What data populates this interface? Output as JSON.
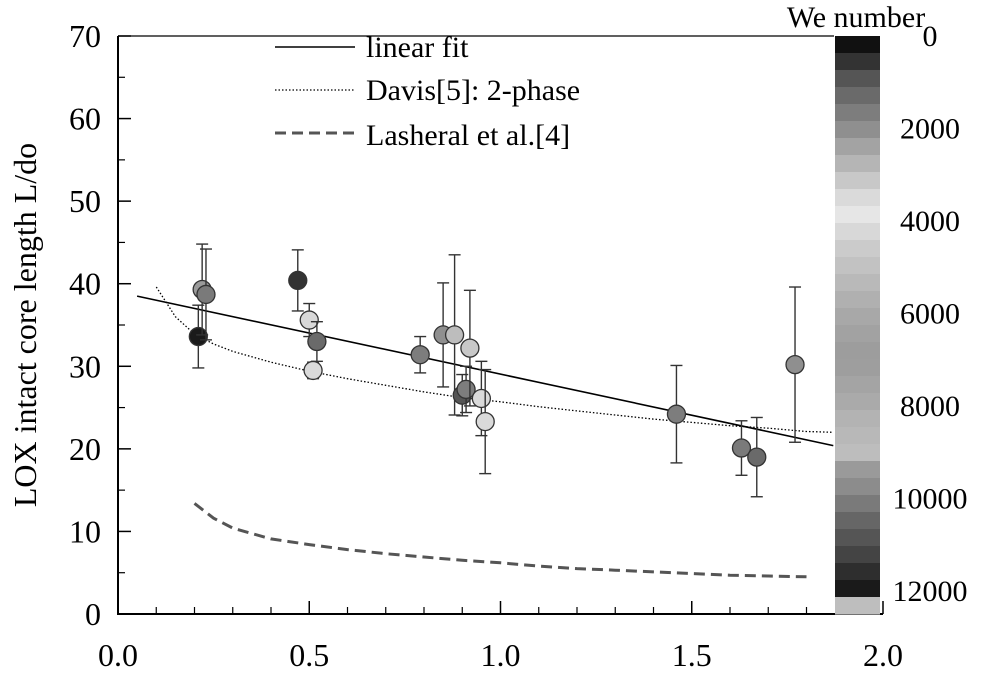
{
  "chart_data": {
    "type": "scatter",
    "title": "",
    "xlabel": "",
    "ylabel": "LOX intact core length L/do",
    "xlim": [
      0.0,
      2.0
    ],
    "ylim": [
      0,
      70
    ],
    "x_ticks": [
      "0.0",
      "0.5",
      "1.0",
      "1.5",
      "2.0"
    ],
    "y_ticks": [
      "0",
      "10",
      "20",
      "30",
      "40",
      "50",
      "60",
      "70"
    ],
    "grid": false,
    "legend_position": "top-center",
    "legend": [
      {
        "label": "linear fit",
        "style": "solid"
      },
      {
        "label": "Davis[5]: 2-phase",
        "style": "dotted"
      },
      {
        "label": "Lasheral et al.[4]",
        "style": "dashed"
      }
    ],
    "colorbar": {
      "title": "We number",
      "min": 0,
      "max": 12500,
      "tick_labels": [
        "0",
        "2000",
        "4000",
        "6000",
        "8000",
        "10000",
        "12000"
      ],
      "colors": [
        "#111111",
        "#333333",
        "#555555",
        "#6a6a6a",
        "#7d7d7d",
        "#8f8f8f",
        "#a3a3a3",
        "#b5b5b5",
        "#c8c8c8",
        "#dadada",
        "#e6e6e6",
        "#d8d8d8",
        "#cbcbcb",
        "#c2c2c2",
        "#b9b9b9",
        "#b0b0b0",
        "#a8a8a8",
        "#a2a2a2",
        "#9d9d9d",
        "#9e9e9e",
        "#a4a4a4",
        "#aaaaaa",
        "#b3b3b3",
        "#b8b8b8",
        "#bdbdbd",
        "#9a9a9a",
        "#8c8c8c",
        "#7a7a7a",
        "#666666",
        "#555555",
        "#444444",
        "#2e2e2e",
        "#1a1a1a",
        "#bebebe"
      ]
    },
    "series": [
      {
        "name": "data",
        "points": [
          {
            "x": 0.21,
            "y": 33.6,
            "err": 3.8,
            "we": 11900
          },
          {
            "x": 0.22,
            "y": 39.3,
            "err": 5.5,
            "we": 9500
          },
          {
            "x": 0.23,
            "y": 38.7,
            "err": 5.5,
            "we": 10000
          },
          {
            "x": 0.47,
            "y": 40.4,
            "err": 3.7,
            "we": 500
          },
          {
            "x": 0.5,
            "y": 35.6,
            "err": 2.0,
            "we": 4200
          },
          {
            "x": 0.51,
            "y": 29.5,
            "err": 1.0,
            "we": 3500
          },
          {
            "x": 0.52,
            "y": 33.0,
            "err": 2.4,
            "we": 1300
          },
          {
            "x": 0.79,
            "y": 31.4,
            "err": 2.2,
            "we": 1800
          },
          {
            "x": 0.85,
            "y": 33.8,
            "err": 6.3,
            "we": 2200
          },
          {
            "x": 0.88,
            "y": 33.8,
            "err": 9.7,
            "we": 9000
          },
          {
            "x": 0.9,
            "y": 26.5,
            "err": 2.5,
            "we": 1000
          },
          {
            "x": 0.91,
            "y": 27.2,
            "err": 2.8,
            "we": 1500
          },
          {
            "x": 0.92,
            "y": 32.2,
            "err": 7.0,
            "we": 3000
          },
          {
            "x": 0.95,
            "y": 26.1,
            "err": 4.5,
            "we": 3400
          },
          {
            "x": 0.96,
            "y": 23.3,
            "err": 6.3,
            "we": 3600
          },
          {
            "x": 1.46,
            "y": 24.2,
            "err": 5.9,
            "we": 1600
          },
          {
            "x": 1.63,
            "y": 20.1,
            "err": 3.3,
            "we": 10000
          },
          {
            "x": 1.67,
            "y": 19.0,
            "err": 4.8,
            "we": 1400
          },
          {
            "x": 1.77,
            "y": 30.2,
            "err": 9.4,
            "we": 2000
          }
        ]
      }
    ],
    "linear_fit": {
      "x": [
        0.05,
        1.87
      ],
      "y": [
        38.5,
        20.4
      ]
    },
    "davis_curve": {
      "x": [
        0.1,
        0.15,
        0.2,
        0.25,
        0.3,
        0.4,
        0.5,
        0.6,
        0.7,
        0.8,
        0.9,
        1.0,
        1.1,
        1.2,
        1.3,
        1.4,
        1.5,
        1.6,
        1.7,
        1.8,
        1.87
      ],
      "y": [
        39.6,
        36.0,
        33.9,
        32.7,
        31.8,
        30.5,
        29.4,
        28.5,
        27.7,
        26.9,
        26.2,
        25.7,
        25.1,
        24.6,
        24.1,
        23.6,
        23.2,
        22.8,
        22.5,
        22.1,
        22.0
      ]
    },
    "lasheras_curve": {
      "x": [
        0.2,
        0.25,
        0.3,
        0.4,
        0.5,
        0.6,
        0.7,
        0.8,
        0.9,
        1.0,
        1.1,
        1.2,
        1.3,
        1.4,
        1.5,
        1.6,
        1.7,
        1.8
      ],
      "y": [
        13.4,
        11.6,
        10.4,
        9.1,
        8.4,
        7.8,
        7.3,
        6.9,
        6.5,
        6.2,
        5.8,
        5.5,
        5.3,
        5.1,
        4.9,
        4.7,
        4.6,
        4.5
      ]
    }
  }
}
